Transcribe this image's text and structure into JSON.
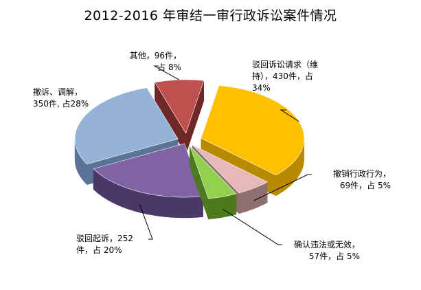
{
  "chart_data": {
    "type": "pie",
    "title": "2012-2016 年审结一审行政诉讼案件情况",
    "slices": [
      {
        "name": "驳回诉讼请求",
        "value": 430,
        "percent": 34,
        "label": "驳回诉讼请求（维\n持），430件，占\n34%",
        "color": "#FFC000",
        "side": "#B88A00"
      },
      {
        "name": "撤销行政行为",
        "value": 69,
        "percent": 5,
        "label": "撤销行政行为，\n69件，占 5%",
        "color": "#E6B9B8",
        "side": "#8E6F6E"
      },
      {
        "name": "确认违法或无效",
        "value": 57,
        "percent": 5,
        "label": "确认违法或无效，\n57件，占 5%",
        "color": "#92D050",
        "side": "#4E7A1E"
      },
      {
        "name": "驳回起诉",
        "value": 252,
        "percent": 20,
        "label": "驳回起诉，252\n件，占 20%",
        "color": "#7F63A3",
        "side": "#4A3866"
      },
      {
        "name": "撤诉、调解",
        "value": 350,
        "percent": 28,
        "label": "撤诉、调解，\n350件, 占28%",
        "color": "#95B3D7",
        "side": "#5A7498"
      },
      {
        "name": "其他",
        "value": 96,
        "percent": 8,
        "label": "其他，96件，\n占 8%",
        "color": "#C0504D",
        "side": "#6E2826"
      }
    ],
    "legend": "none",
    "labels": "outside with leader lines"
  }
}
